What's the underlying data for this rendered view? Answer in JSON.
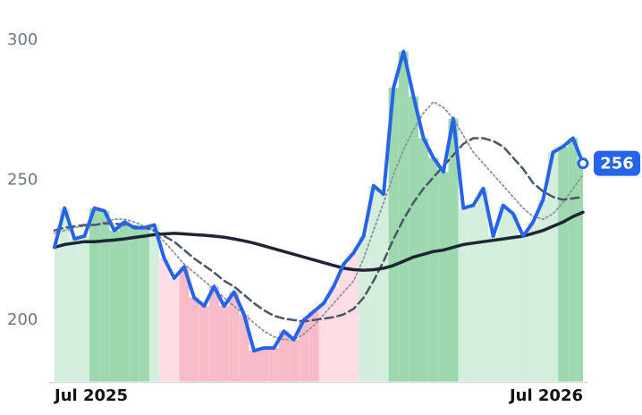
{
  "chart_data": {
    "type": "line",
    "categories": [
      "Jul 2025",
      null,
      null,
      null,
      null,
      null,
      null,
      null,
      null,
      null,
      null,
      null,
      null,
      null,
      null,
      null,
      null,
      null,
      null,
      null,
      null,
      null,
      null,
      null,
      null,
      null,
      null,
      null,
      null,
      null,
      null,
      null,
      null,
      null,
      null,
      null,
      null,
      null,
      null,
      null,
      null,
      null,
      null,
      null,
      null,
      null,
      null,
      null,
      null,
      null,
      null,
      null,
      null,
      "Jul 2026"
    ],
    "ylim": [
      178,
      314
    ],
    "yticks": [
      200,
      250,
      300
    ],
    "area_colors": [
      "#d4eedc",
      "#d4eedc",
      "#d4eedc",
      "#d4eedc",
      "#9dd8ae",
      "#9dd8ae",
      "#9dd8ae",
      "#9dd8ae",
      "#9dd8ae",
      "#9dd8ae",
      "#d4eedc",
      "#fddde3",
      "#fddde3",
      "#f8bcc8",
      "#f8bcc8",
      "#f8bcc8",
      "#f8bcc8",
      "#f8bcc8",
      "#f8bcc8",
      "#f8bcc8",
      "#f8bcc8",
      "#f8bcc8",
      "#f8bcc8",
      "#f8bcc8",
      "#f8bcc8",
      "#f8bcc8",
      "#f8bcc8",
      "#fddde3",
      "#fddde3",
      "#fddde3",
      "#fddde3",
      "#d4eedc",
      "#d4eedc",
      "#d4eedc",
      "#9dd8ae",
      "#9dd8ae",
      "#9dd8ae",
      "#9dd8ae",
      "#9dd8ae",
      "#9dd8ae",
      "#9dd8ae",
      "#d4eedc",
      "#d4eedc",
      "#d4eedc",
      "#d4eedc",
      "#d4eedc",
      "#d4eedc",
      "#d4eedc",
      "#d4eedc",
      "#d4eedc",
      "#d4eedc",
      "#9dd8ae",
      "#9dd8ae",
      "#9dd8ae"
    ],
    "series": [
      {
        "color": "#2563eb",
        "style": "solid",
        "width": 4,
        "values": [
          226,
          240,
          229,
          230,
          240,
          239,
          232,
          235,
          233,
          233,
          234,
          222,
          215,
          219,
          208,
          205,
          212,
          205,
          210,
          202,
          189,
          190,
          190,
          196,
          193,
          200,
          203,
          206,
          212,
          220,
          224,
          230,
          248,
          245,
          283,
          296,
          280,
          265,
          258,
          253,
          272,
          240,
          241,
          247,
          230,
          241,
          238,
          230,
          235,
          243,
          260,
          262,
          265,
          256
        ]
      },
      {
        "color": "#1e2535",
        "style": "solid",
        "width": 3.5,
        "values": [
          226,
          227,
          227.5,
          228,
          228,
          228.3,
          228.6,
          229,
          229.5,
          230,
          230.5,
          230.8,
          231,
          230.8,
          230.5,
          230.3,
          230,
          229.6,
          229,
          228.3,
          227.5,
          226.5,
          225.5,
          224.5,
          223.5,
          222.5,
          221.5,
          220.5,
          219.5,
          218.5,
          218,
          217.8,
          218,
          218.5,
          219.5,
          221,
          222.5,
          223.5,
          224.5,
          225,
          226,
          227,
          227.5,
          228,
          228.5,
          229,
          229.5,
          230,
          231,
          232,
          233.5,
          235,
          237,
          238.5
        ]
      },
      {
        "color": "#4b5667",
        "style": "dashed",
        "width": 2.5,
        "values": [
          232,
          233,
          233.5,
          234,
          234,
          234.5,
          234.5,
          234,
          233.5,
          233,
          232,
          230,
          228,
          225,
          222,
          219.5,
          217,
          214,
          212,
          209,
          206,
          203.5,
          201.5,
          200.5,
          200,
          199.5,
          200,
          200.5,
          201,
          202,
          204,
          208,
          214,
          221,
          229,
          236,
          242,
          247,
          251,
          255,
          259,
          263,
          265,
          265,
          264,
          262,
          258,
          254,
          249,
          246,
          244,
          243,
          243.5,
          244
        ]
      },
      {
        "color": "#8a93a0",
        "style": "dotted",
        "width": 1.8,
        "values": [
          231,
          232,
          233,
          233.5,
          234,
          235,
          236,
          236,
          235,
          233.5,
          232,
          228,
          224,
          220,
          217,
          214,
          211,
          208,
          205,
          202,
          199,
          196,
          194,
          193,
          193,
          195,
          198,
          202,
          206,
          210,
          214,
          222,
          232,
          242,
          252,
          261,
          268,
          274,
          278,
          276,
          272,
          266,
          260,
          256,
          252,
          248,
          244,
          240,
          237,
          236,
          238,
          242,
          247,
          252
        ]
      }
    ]
  }
}
